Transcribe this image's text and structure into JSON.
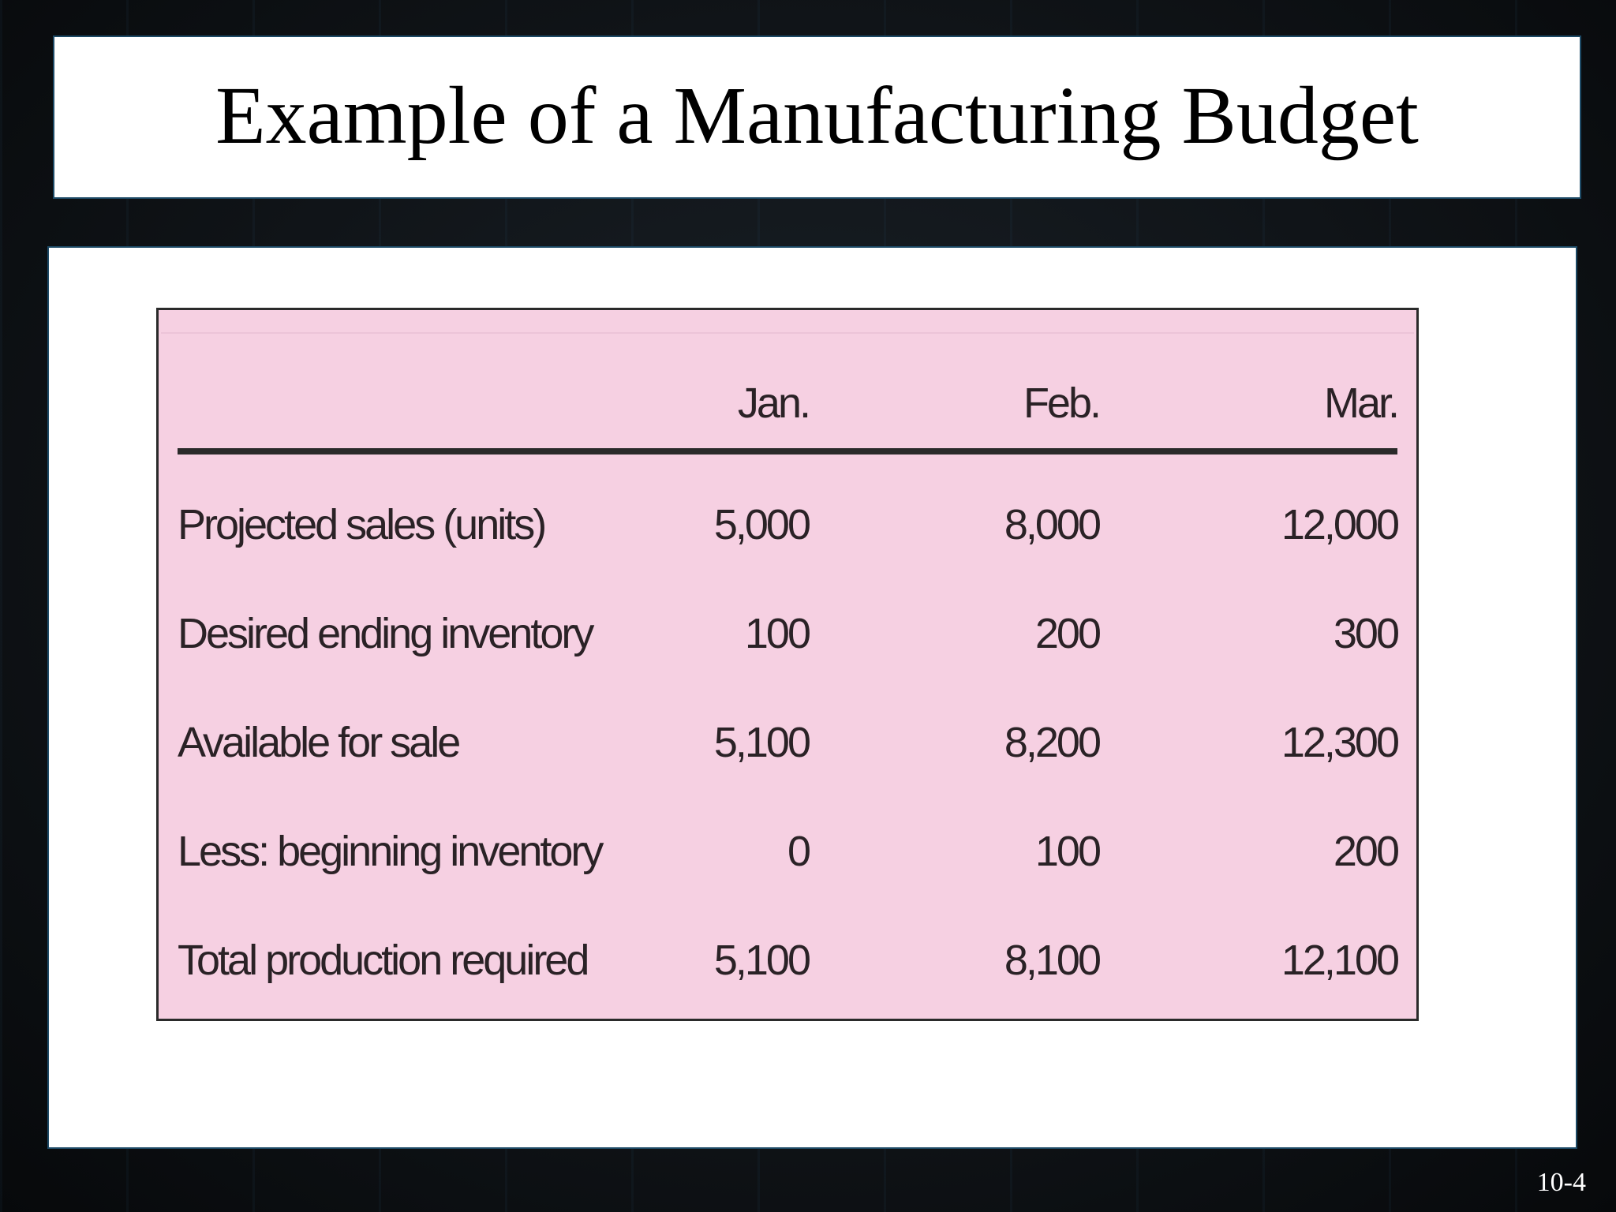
{
  "slide": {
    "title": "Example of a Manufacturing Budget",
    "number": "10-4"
  },
  "table": {
    "columns": [
      "",
      "Jan.",
      "Feb.",
      "Mar."
    ],
    "rows": [
      {
        "label": "Projected sales (units)",
        "values": [
          "5,000",
          "8,000",
          "12,000"
        ]
      },
      {
        "label": "Desired ending inventory",
        "values": [
          "100",
          "200",
          "300"
        ]
      },
      {
        "label": "Available for sale",
        "values": [
          "5,100",
          "8,200",
          "12,300"
        ]
      },
      {
        "label": "Less: beginning inventory",
        "values": [
          "0",
          "100",
          "200"
        ]
      },
      {
        "label": "Total production required",
        "values": [
          "5,100",
          "8,100",
          "12,100"
        ]
      }
    ]
  },
  "colors": {
    "table_background": "#f6d0e2",
    "panel_border": "#1d4a66"
  }
}
